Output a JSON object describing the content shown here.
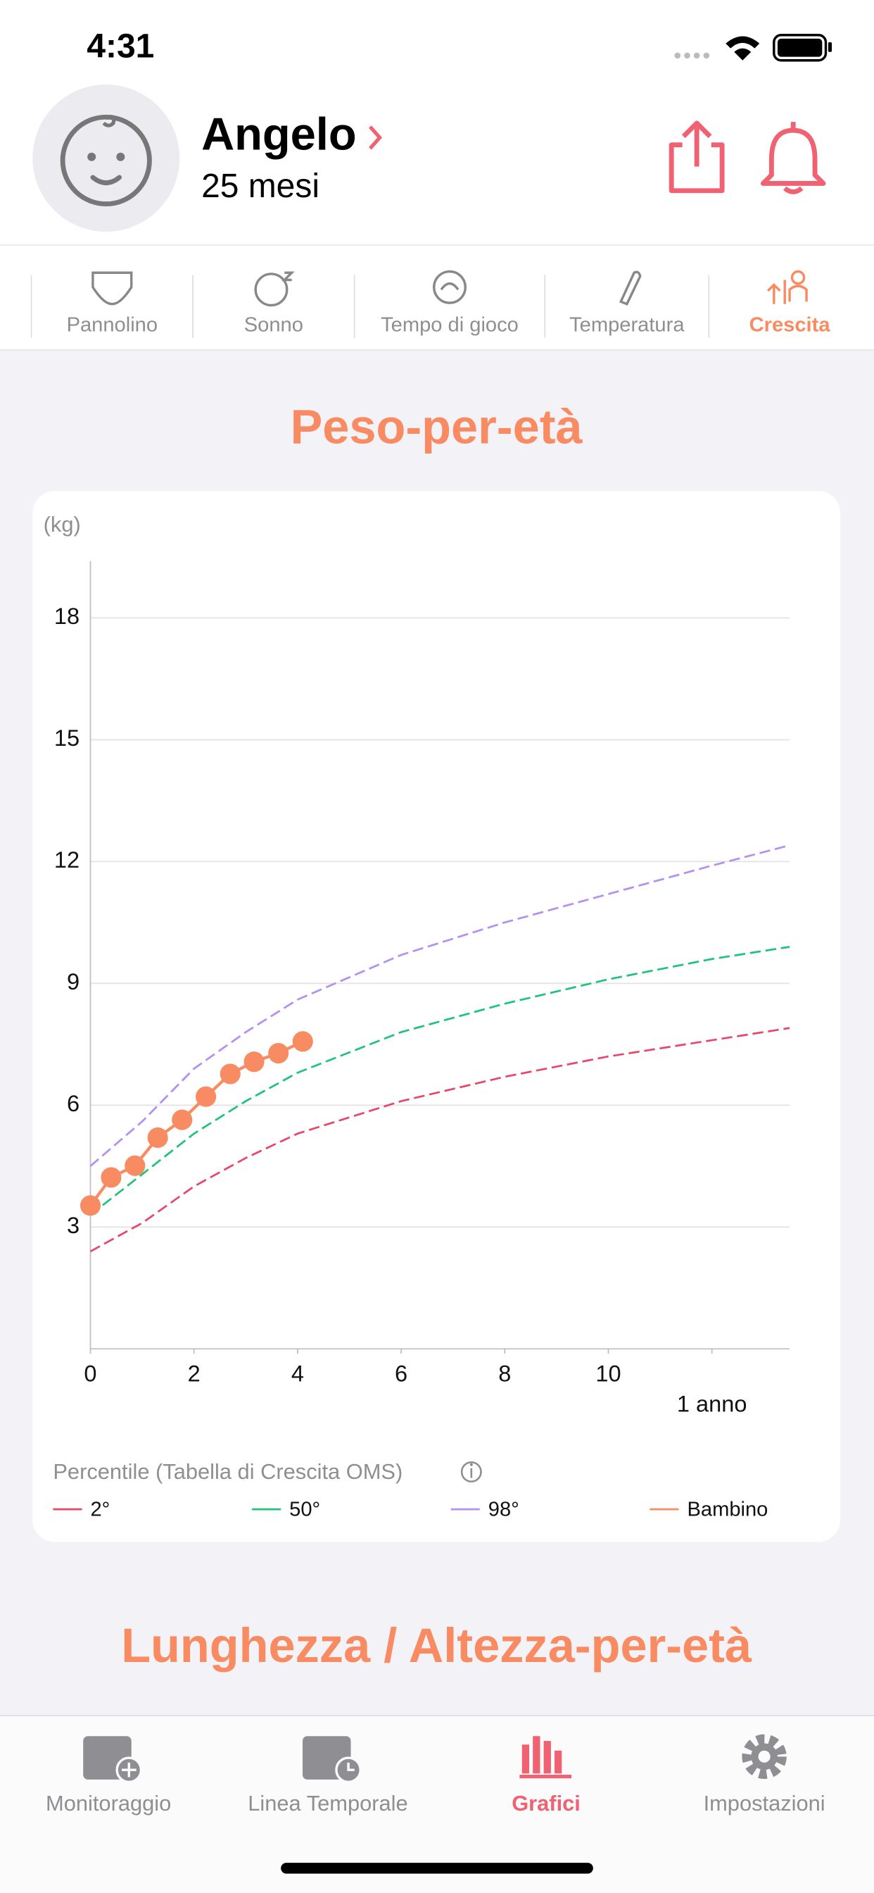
{
  "status_bar": {
    "time": "4:31"
  },
  "profile": {
    "name": "Angelo",
    "age": "25 mesi"
  },
  "tabs": [
    {
      "label": "Pannolino"
    },
    {
      "label": "Sonno"
    },
    {
      "label": "Tempo di gioco"
    },
    {
      "label": "Temperatura"
    },
    {
      "label": "Crescita",
      "active": true
    }
  ],
  "chart_data": {
    "type": "line",
    "title": "Peso-per-età",
    "y_label": "(kg)",
    "legend_title": "Percentile (Tabella di Crescita OMS)",
    "xlim": [
      0,
      13.5
    ],
    "ylim": [
      0,
      19.4
    ],
    "xticks": [
      0,
      2,
      4,
      6,
      8,
      10,
      {
        "value": 12,
        "label": "1 anno"
      }
    ],
    "yticks": [
      3,
      6,
      9,
      12,
      15,
      18
    ],
    "grid": true,
    "series": [
      {
        "name": "2°",
        "color": "#e8476a",
        "dashed": true,
        "x": [
          0,
          1,
          2,
          3,
          4,
          6,
          8,
          10,
          12,
          13.5
        ],
        "values": [
          2.4,
          3.1,
          4.0,
          4.7,
          5.3,
          6.1,
          6.7,
          7.2,
          7.6,
          7.9
        ]
      },
      {
        "name": "50°",
        "color": "#1fc47a",
        "dashed": true,
        "x": [
          0,
          1,
          2,
          3,
          4,
          6,
          8,
          10,
          12,
          13.5
        ],
        "values": [
          3.3,
          4.3,
          5.3,
          6.1,
          6.8,
          7.8,
          8.5,
          9.1,
          9.6,
          9.9
        ]
      },
      {
        "name": "98°",
        "color": "#b491f0",
        "dashed": true,
        "x": [
          0,
          1,
          2,
          3,
          4,
          6,
          8,
          10,
          12,
          13.5
        ],
        "values": [
          4.5,
          5.6,
          6.9,
          7.8,
          8.6,
          9.7,
          10.5,
          11.2,
          11.9,
          12.4
        ]
      },
      {
        "name": "Bambino",
        "color": "#f98b62",
        "dashed": false,
        "x": [
          0,
          0.4,
          0.86,
          1.3,
          1.77,
          2.23,
          2.7,
          3.16,
          3.63,
          4.1
        ],
        "values": [
          3.53,
          4.22,
          4.51,
          5.2,
          5.64,
          6.21,
          6.77,
          7.07,
          7.28,
          7.57
        ]
      }
    ]
  },
  "next_section": "Lunghezza / Altezza-per-età",
  "nav": [
    {
      "label": "Monitoraggio"
    },
    {
      "label": "Linea Temporale"
    },
    {
      "label": "Grafici",
      "active": true
    },
    {
      "label": "Impostazioni"
    }
  ]
}
